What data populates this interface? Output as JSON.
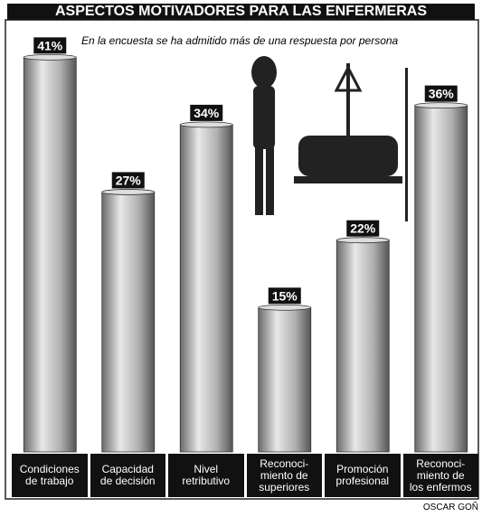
{
  "chart_data": {
    "type": "bar",
    "title": "ASPECTOS MOTIVADORES PARA LAS ENFERMERAS",
    "subtitle": "En la encuesta se ha admitido más de una respuesta por persona",
    "categories": [
      "Condiciones\nde trabajo",
      "Capacidad\nde decisión",
      "Nivel\nretributivo",
      "Reconoci-\nmiento de\nsuperiores",
      "Promoción\nprofesional",
      "Reconoci-\nmiento de\nlos enfermos"
    ],
    "values": [
      41,
      27,
      34,
      15,
      22,
      36
    ],
    "value_labels": [
      "41%",
      "27%",
      "34%",
      "15%",
      "22%",
      "36%"
    ],
    "color": "#a8a8a8",
    "credit": "OSCAR GOÑ"
  }
}
